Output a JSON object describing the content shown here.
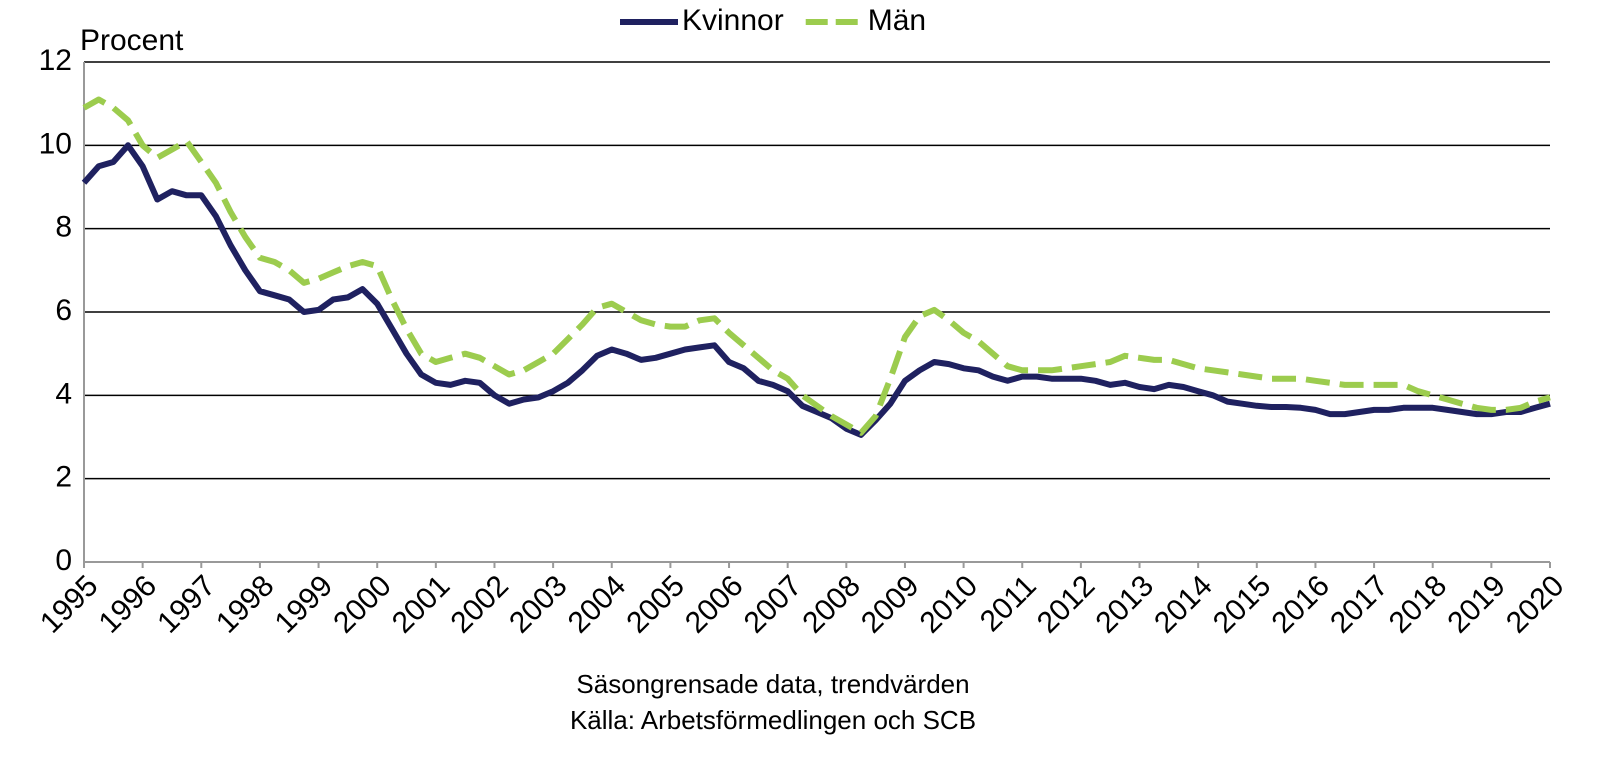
{
  "chart_data": {
    "type": "line",
    "ylabel": "Procent",
    "notes": [
      "Säsongrensade data, trendvärden",
      "Källa: Arbetsförmedlingen och SCB"
    ],
    "x": [
      1995,
      1995.25,
      1995.5,
      1995.75,
      1996,
      1996.25,
      1996.5,
      1996.75,
      1997,
      1997.25,
      1997.5,
      1997.75,
      1998,
      1998.25,
      1998.5,
      1998.75,
      1999,
      1999.25,
      1999.5,
      1999.75,
      2000,
      2000.25,
      2000.5,
      2000.75,
      2001,
      2001.25,
      2001.5,
      2001.75,
      2002,
      2002.25,
      2002.5,
      2002.75,
      2003,
      2003.25,
      2003.5,
      2003.75,
      2004,
      2004.25,
      2004.5,
      2004.75,
      2005,
      2005.25,
      2005.5,
      2005.75,
      2006,
      2006.25,
      2006.5,
      2006.75,
      2007,
      2007.25,
      2007.5,
      2007.75,
      2008,
      2008.25,
      2008.5,
      2008.75,
      2009,
      2009.25,
      2009.5,
      2009.75,
      2010,
      2010.25,
      2010.5,
      2010.75,
      2011,
      2011.25,
      2011.5,
      2011.75,
      2012,
      2012.25,
      2012.5,
      2012.75,
      2013,
      2013.25,
      2013.5,
      2013.75,
      2014,
      2014.25,
      2014.5,
      2014.75,
      2015,
      2015.25,
      2015.5,
      2015.75,
      2016,
      2016.25,
      2016.5,
      2016.75,
      2017,
      2017.25,
      2017.5,
      2017.75,
      2018,
      2018.25,
      2018.5,
      2018.75,
      2019,
      2019.25,
      2019.5,
      2019.75,
      2020
    ],
    "series": [
      {
        "name": "Kvinnor",
        "color": "#1f2160",
        "dashed": false,
        "values": [
          9.1,
          9.5,
          9.6,
          10.0,
          9.5,
          8.7,
          8.9,
          8.8,
          8.8,
          8.3,
          7.6,
          7.0,
          6.5,
          6.4,
          6.3,
          6.0,
          6.05,
          6.3,
          6.35,
          6.55,
          6.2,
          5.6,
          5.0,
          4.5,
          4.3,
          4.25,
          4.35,
          4.3,
          4.0,
          3.8,
          3.9,
          3.95,
          4.1,
          4.3,
          4.6,
          4.95,
          5.1,
          5.0,
          4.85,
          4.9,
          5.0,
          5.1,
          5.15,
          5.2,
          4.8,
          4.65,
          4.35,
          4.25,
          4.1,
          3.75,
          3.6,
          3.45,
          3.2,
          3.05,
          3.4,
          3.8,
          4.35,
          4.6,
          4.8,
          4.75,
          4.65,
          4.6,
          4.45,
          4.35,
          4.45,
          4.45,
          4.4,
          4.4,
          4.4,
          4.35,
          4.25,
          4.3,
          4.2,
          4.15,
          4.25,
          4.2,
          4.1,
          4.0,
          3.85,
          3.8,
          3.75,
          3.72,
          3.72,
          3.7,
          3.65,
          3.55,
          3.55,
          3.6,
          3.65,
          3.65,
          3.7,
          3.7,
          3.7,
          3.65,
          3.6,
          3.55,
          3.55,
          3.6,
          3.6,
          3.7,
          3.8
        ]
      },
      {
        "name": "Män",
        "color": "#9ccc4e",
        "dashed": true,
        "values": [
          10.9,
          11.1,
          10.9,
          10.6,
          10.0,
          9.7,
          9.9,
          10.1,
          9.6,
          9.1,
          8.4,
          7.8,
          7.3,
          7.2,
          7.0,
          6.7,
          6.8,
          6.95,
          7.1,
          7.2,
          7.1,
          6.3,
          5.6,
          5.0,
          4.8,
          4.9,
          5.0,
          4.9,
          4.7,
          4.5,
          4.6,
          4.8,
          5.0,
          5.35,
          5.7,
          6.1,
          6.2,
          6.0,
          5.8,
          5.7,
          5.65,
          5.65,
          5.8,
          5.85,
          5.5,
          5.2,
          4.9,
          4.6,
          4.4,
          4.0,
          3.75,
          3.5,
          3.3,
          3.1,
          3.5,
          4.4,
          5.4,
          5.9,
          6.05,
          5.8,
          5.5,
          5.3,
          5.0,
          4.7,
          4.6,
          4.6,
          4.6,
          4.65,
          4.7,
          4.75,
          4.8,
          4.95,
          4.9,
          4.85,
          4.85,
          4.75,
          4.65,
          4.6,
          4.55,
          4.5,
          4.45,
          4.4,
          4.4,
          4.4,
          4.35,
          4.3,
          4.25,
          4.25,
          4.25,
          4.25,
          4.25,
          4.1,
          4.0,
          3.9,
          3.8,
          3.7,
          3.65,
          3.65,
          3.7,
          3.85,
          3.95
        ]
      }
    ],
    "xlim": [
      1995,
      2020
    ],
    "xticks": [
      1995,
      1996,
      1997,
      1998,
      1999,
      2000,
      2001,
      2002,
      2003,
      2004,
      2005,
      2006,
      2007,
      2008,
      2009,
      2010,
      2011,
      2012,
      2013,
      2014,
      2015,
      2016,
      2017,
      2018,
      2019,
      2020
    ],
    "ylim": [
      0,
      12
    ],
    "yticks": [
      0,
      2,
      4,
      6,
      8,
      10,
      12
    ],
    "grid": true,
    "legend": "top"
  }
}
